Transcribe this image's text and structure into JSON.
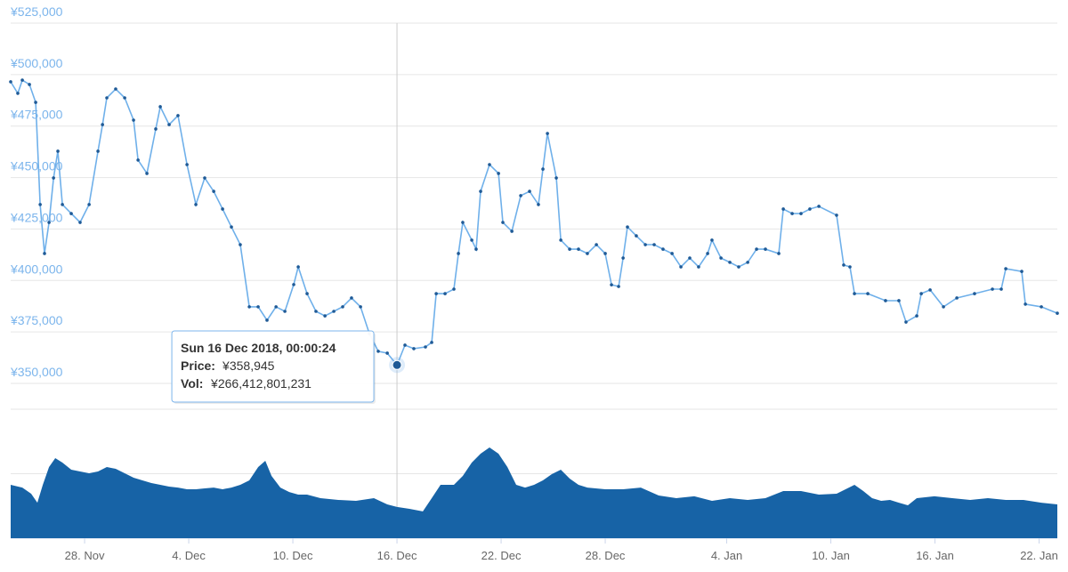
{
  "chart_data": [
    {
      "type": "line",
      "color": "#6fb0ea",
      "marker_color": "#1f5a96",
      "x": [
        -4.26,
        -3.85,
        -3.59,
        -3.18,
        -2.82,
        -2.56,
        -2.31,
        -2.05,
        -1.79,
        -1.54,
        -1.28,
        -0.77,
        -0.26,
        0.26,
        0.77,
        1.03,
        1.28,
        1.79,
        2.31,
        2.82,
        3.08,
        3.59,
        4.1,
        4.36,
        4.87,
        5.38,
        5.9,
        6.41,
        6.92,
        7.44,
        7.95,
        8.46,
        8.97,
        9.49,
        10.0,
        10.51,
        11.03,
        11.54,
        12.05,
        12.31,
        12.82,
        13.33,
        13.85,
        14.36,
        14.87,
        15.38,
        15.9,
        16.41,
        16.92,
        17.44,
        18.0,
        18.46,
        18.97,
        19.64,
        20.0,
        20.26,
        20.77,
        21.28,
        21.54,
        21.79,
        22.31,
        22.56,
        22.82,
        23.33,
        23.85,
        24.1,
        24.62,
        25.13,
        25.64,
        26.15,
        26.41,
        26.67,
        27.18,
        27.44,
        27.95,
        28.46,
        28.97,
        29.49,
        30.0,
        30.36,
        30.77,
        31.03,
        31.28,
        31.79,
        32.31,
        32.82,
        33.33,
        33.85,
        34.36,
        34.87,
        35.38,
        35.9,
        36.15,
        36.67,
        37.18,
        37.69,
        38.21,
        38.72,
        39.23,
        40.0,
        40.26,
        40.77,
        41.28,
        41.79,
        42.31,
        43.33,
        43.74,
        44.1,
        44.36,
        45.13,
        46.15,
        46.92,
        47.33,
        47.95,
        48.21,
        48.72,
        49.49,
        50.26,
        51.28,
        52.31,
        52.82,
        53.08,
        54.0,
        54.21,
        55.13,
        56.05
      ],
      "values": [
        496500,
        490900,
        497300,
        495200,
        486500,
        436900,
        413100,
        428200,
        449800,
        462800,
        436900,
        432500,
        428200,
        436900,
        462800,
        475700,
        488700,
        493000,
        488700,
        477900,
        458500,
        452000,
        473600,
        484400,
        475700,
        480100,
        456300,
        436900,
        449800,
        443300,
        434700,
        426000,
        417400,
        387200,
        387200,
        380700,
        387200,
        385000,
        398000,
        406600,
        393600,
        385000,
        382800,
        385000,
        387200,
        391500,
        387200,
        374200,
        365600,
        364700,
        358945,
        368600,
        366900,
        367700,
        369900,
        393600,
        393600,
        395800,
        413100,
        428200,
        419600,
        415200,
        443300,
        456300,
        452000,
        428200,
        423900,
        441200,
        443300,
        436900,
        454100,
        471400,
        449800,
        419600,
        415200,
        415200,
        413100,
        417400,
        413100,
        397900,
        397100,
        410900,
        426000,
        421700,
        417400,
        417400,
        415200,
        413100,
        406600,
        410900,
        406600,
        413100,
        419600,
        410900,
        408800,
        406600,
        408800,
        415200,
        415200,
        413100,
        434700,
        432500,
        432500,
        434700,
        436000,
        431700,
        407500,
        406600,
        393600,
        393600,
        390200,
        390200,
        379800,
        382800,
        393600,
        395400,
        387200,
        391500,
        393600,
        395800,
        395800,
        405700,
        404400,
        388500,
        387200,
        384100
      ],
      "xlim": [
        -4.26,
        56.05
      ],
      "ylim": [
        350000,
        525000
      ],
      "yticks": [
        {
          "value": 350000,
          "label": "¥350,000"
        },
        {
          "value": 375000,
          "label": "¥375,000"
        },
        {
          "value": 400000,
          "label": "¥400,000"
        },
        {
          "value": 425000,
          "label": "¥425,000"
        },
        {
          "value": 450000,
          "label": "¥450,000"
        },
        {
          "value": 475000,
          "label": "¥475,000"
        },
        {
          "value": 500000,
          "label": "¥500,000"
        },
        {
          "value": 525000,
          "label": "¥525,000"
        }
      ],
      "grid": true,
      "tooltip": {
        "x": 18,
        "date": "Sun 16 Dec 2018, 00:00:24",
        "price_label": "Price:",
        "price": {
          "value": 358945,
          "label": "¥358,945"
        },
        "volume_label": "Vol:",
        "volume": {
          "value": 266412801231,
          "label": "¥266,412,801,231"
        }
      }
    },
    {
      "type": "area",
      "color": "#1763a6",
      "x": [
        -4.26,
        -3.59,
        -3.08,
        -2.72,
        -2.41,
        -2.05,
        -1.69,
        -1.28,
        -0.77,
        -0.26,
        0.26,
        0.77,
        1.28,
        1.79,
        2.31,
        2.82,
        3.33,
        3.85,
        4.36,
        4.87,
        5.38,
        5.9,
        6.41,
        6.92,
        7.44,
        7.95,
        8.46,
        8.97,
        9.49,
        10.0,
        10.41,
        10.77,
        11.28,
        11.79,
        12.31,
        12.82,
        13.59,
        14.62,
        15.64,
        16.67,
        17.44,
        18.0,
        18.72,
        19.49,
        20.0,
        20.51,
        21.28,
        21.79,
        22.31,
        22.82,
        23.33,
        23.85,
        24.36,
        24.87,
        25.38,
        25.9,
        26.41,
        26.92,
        27.44,
        27.95,
        28.46,
        28.97,
        30.0,
        31.03,
        32.05,
        33.08,
        34.1,
        35.13,
        36.15,
        37.18,
        38.21,
        39.23,
        40.26,
        41.28,
        42.31,
        43.33,
        44.36,
        44.87,
        45.38,
        45.9,
        46.41,
        46.92,
        47.44,
        47.95,
        48.97,
        50.0,
        51.03,
        52.05,
        53.08,
        54.1,
        55.13,
        56.05
      ],
      "values": [
        455000000000,
        432000000000,
        379000000000,
        303000000000,
        455000000000,
        607000000000,
        683000000000,
        645000000000,
        584000000000,
        569000000000,
        554000000000,
        569000000000,
        607000000000,
        592000000000,
        554000000000,
        516000000000,
        493000000000,
        470000000000,
        455000000000,
        440000000000,
        432000000000,
        417000000000,
        417000000000,
        425000000000,
        432000000000,
        417000000000,
        432000000000,
        455000000000,
        493000000000,
        607000000000,
        660000000000,
        531000000000,
        432000000000,
        394000000000,
        372000000000,
        372000000000,
        341000000000,
        326000000000,
        319000000000,
        341000000000,
        288000000000,
        266412801231,
        250000000000,
        228000000000,
        341000000000,
        455000000000,
        455000000000,
        531000000000,
        645000000000,
        721000000000,
        774000000000,
        721000000000,
        607000000000,
        455000000000,
        432000000000,
        455000000000,
        493000000000,
        546000000000,
        584000000000,
        508000000000,
        455000000000,
        432000000000,
        417000000000,
        417000000000,
        432000000000,
        364000000000,
        341000000000,
        357000000000,
        319000000000,
        341000000000,
        326000000000,
        341000000000,
        402000000000,
        402000000000,
        372000000000,
        379000000000,
        455000000000,
        402000000000,
        341000000000,
        319000000000,
        326000000000,
        303000000000,
        281000000000,
        341000000000,
        357000000000,
        341000000000,
        326000000000,
        341000000000,
        326000000000,
        326000000000,
        303000000000,
        288000000000
      ],
      "xlim": [
        -4.26,
        56.05
      ],
      "ylim": [
        0,
        1100000000000
      ],
      "yticks": [
        0,
        550000000000,
        1100000000000
      ],
      "grid": true,
      "xticks": [
        {
          "value": 0,
          "label": "28. Nov"
        },
        {
          "value": 6,
          "label": "4. Dec"
        },
        {
          "value": 12,
          "label": "10. Dec"
        },
        {
          "value": 18,
          "label": "16. Dec"
        },
        {
          "value": 24,
          "label": "22. Dec"
        },
        {
          "value": 30,
          "label": "28. Dec"
        },
        {
          "value": 37,
          "label": "4. Jan"
        },
        {
          "value": 43,
          "label": "10. Jan"
        },
        {
          "value": 49,
          "label": "16. Jan"
        },
        {
          "value": 55,
          "label": "22. Jan"
        }
      ]
    }
  ]
}
